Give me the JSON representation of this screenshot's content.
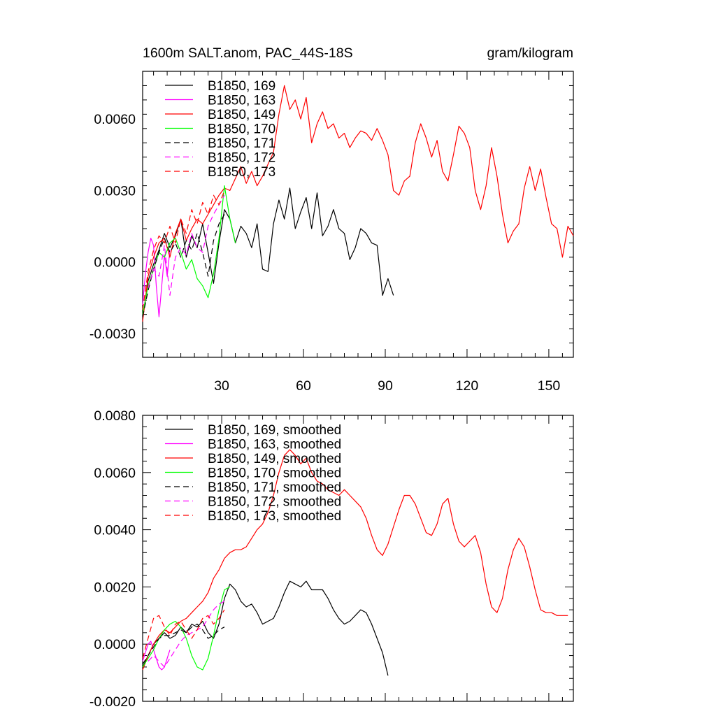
{
  "figure": {
    "title_left": "1600m SALT.anom, PAC_44S-18S",
    "title_right": "gram/kilogram"
  },
  "chart_data": [
    {
      "type": "line",
      "xlim": [
        1,
        159
      ],
      "ylim": [
        -0.004,
        0.008
      ],
      "x_ticks": [
        30,
        60,
        90,
        120,
        150
      ],
      "x_tick_labels": [
        "30",
        "60",
        "90",
        "120",
        "150"
      ],
      "y_ticks": [
        -0.003,
        0.0,
        0.003,
        0.006
      ],
      "y_tick_labels": [
        "-0.0030",
        "0.0000",
        "0.0030",
        "0.0060"
      ],
      "legend_position": "top-left",
      "series": [
        {
          "name": "B1850, 169",
          "color": "#000000",
          "dash": "solid",
          "x": [
            1,
            3,
            5,
            7,
            9,
            11,
            13,
            15,
            17,
            19,
            21,
            23,
            25,
            27,
            29,
            31,
            33,
            35,
            37,
            39,
            41,
            43,
            45,
            47,
            49,
            51,
            53,
            55,
            57,
            59,
            61,
            63,
            65,
            67,
            69,
            71,
            73,
            75,
            77,
            79,
            81,
            83,
            85,
            87,
            89,
            91,
            93
          ],
          "y": [
            -0.0024,
            -0.0008,
            -0.0001,
            0.0005,
            0.0012,
            0.0006,
            0.0011,
            0.0018,
            0.0002,
            0.0011,
            0.0006,
            0.0016,
            0.0004,
            -0.0009,
            0.0008,
            0.0022,
            0.0018,
            0.0008,
            0.0015,
            0.0012,
            0.0006,
            0.0016,
            -0.0003,
            -0.0004,
            0.0016,
            0.0026,
            0.0018,
            0.0031,
            0.0014,
            0.0021,
            0.0027,
            0.0014,
            0.0029,
            0.0011,
            0.0015,
            0.0022,
            0.0014,
            0.0012,
            0.0001,
            0.0006,
            0.0014,
            0.0012,
            0.0008,
            0.0007,
            -0.0014,
            -0.0007,
            -0.0014
          ]
        },
        {
          "name": "B1850, 163",
          "color": "#ff00ff",
          "dash": "solid",
          "x": [
            1,
            2,
            3,
            4,
            5,
            6,
            7,
            8,
            9,
            10,
            11
          ],
          "y": [
            -0.0018,
            -0.0005,
            0.0004,
            0.001,
            0.0007,
            -0.001,
            -0.0023,
            -0.001,
            0.0003,
            -0.0006,
            0.0005
          ]
        },
        {
          "name": "B1850, 149",
          "color": "#ff0000",
          "dash": "solid",
          "x": [
            1,
            3,
            5,
            7,
            9,
            11,
            13,
            15,
            17,
            19,
            21,
            23,
            25,
            27,
            29,
            31,
            33,
            35,
            37,
            39,
            41,
            43,
            45,
            47,
            49,
            51,
            53,
            55,
            57,
            59,
            61,
            63,
            65,
            67,
            69,
            71,
            73,
            75,
            77,
            79,
            81,
            83,
            85,
            87,
            89,
            91,
            93,
            95,
            97,
            99,
            101,
            103,
            105,
            107,
            109,
            111,
            113,
            115,
            117,
            119,
            121,
            123,
            125,
            127,
            129,
            131,
            133,
            135,
            137,
            139,
            141,
            143,
            145,
            147,
            149,
            151,
            153,
            155,
            157,
            159
          ],
          "y": [
            -0.0025,
            -0.0006,
            0.0002,
            0.0008,
            0.001,
            0.0002,
            0.0012,
            0.0018,
            0.0009,
            0.0014,
            0.0018,
            0.0016,
            0.002,
            0.0024,
            0.0028,
            0.0031,
            0.003,
            0.0035,
            0.004,
            0.0033,
            0.0038,
            0.0032,
            0.0036,
            0.0041,
            0.0046,
            0.0062,
            0.0074,
            0.0064,
            0.0068,
            0.006,
            0.0069,
            0.005,
            0.0058,
            0.0063,
            0.0056,
            0.0058,
            0.0052,
            0.0054,
            0.0048,
            0.0052,
            0.0055,
            0.0054,
            0.0051,
            0.0056,
            0.0051,
            0.0045,
            0.003,
            0.0028,
            0.0034,
            0.0036,
            0.005,
            0.0058,
            0.0052,
            0.0044,
            0.0051,
            0.0038,
            0.0034,
            0.0045,
            0.0057,
            0.0054,
            0.0048,
            0.003,
            0.0022,
            0.0032,
            0.0048,
            0.0036,
            0.002,
            0.0008,
            0.0013,
            0.0016,
            0.0031,
            0.004,
            0.003,
            0.0039,
            0.0027,
            0.0016,
            0.0014,
            0.0002,
            0.0015,
            0.0011
          ]
        },
        {
          "name": "B1850, 170",
          "color": "#00ff00",
          "dash": "solid",
          "x": [
            1,
            3,
            5,
            7,
            9,
            11,
            13,
            15,
            17,
            19,
            21,
            23,
            25,
            27,
            29,
            31,
            33,
            35
          ],
          "y": [
            -0.0022,
            -0.001,
            -0.0003,
            0.0004,
            0.0002,
            0.0008,
            0.001,
            0.0004,
            -0.0003,
            0.0001,
            -0.0007,
            -0.001,
            -0.0015,
            -0.0005,
            0.001,
            0.0032,
            0.0018,
            0.0008
          ]
        },
        {
          "name": "B1850, 171",
          "color": "#000000",
          "dash": "dashed",
          "x": [
            1,
            3,
            5,
            7,
            9,
            11,
            13,
            15,
            17,
            19,
            21,
            23,
            25,
            27,
            29,
            31
          ],
          "y": [
            -0.0023,
            -0.0012,
            -0.0003,
            0.0004,
            0.001,
            0.0004,
            0.0008,
            0.0002,
            0.0009,
            0.0005,
            0.0012,
            0.0004,
            -0.0006,
            0.0009,
            0.0016,
            0.002
          ]
        },
        {
          "name": "B1850, 172",
          "color": "#ff00ff",
          "dash": "dashed",
          "x": [
            3,
            5,
            7,
            9,
            11,
            13,
            15,
            17,
            19,
            21,
            23,
            25,
            27,
            29,
            31
          ],
          "y": [
            -0.0011,
            -0.0003,
            -0.0006,
            0.0007,
            -0.0014,
            0.0002,
            0.0006,
            0.0003,
            0.0012,
            0.0006,
            0.0004,
            0.0015,
            0.002,
            0.0024,
            0.0028
          ]
        },
        {
          "name": "B1850, 173",
          "color": "#ff0000",
          "dash": "dashed",
          "x": [
            1,
            3,
            5,
            7,
            9,
            11,
            13,
            15,
            17,
            19,
            21,
            23,
            25,
            27,
            29,
            31
          ],
          "y": [
            -0.002,
            -0.0004,
            0.0005,
            0.0011,
            0.0008,
            0.0015,
            0.0008,
            0.0018,
            0.0012,
            0.0022,
            0.0016,
            0.0025,
            0.002,
            0.0028,
            0.0024,
            0.003
          ]
        }
      ]
    },
    {
      "type": "line",
      "xlim": [
        1,
        159
      ],
      "ylim": [
        -0.002,
        0.008
      ],
      "x_ticks": [
        30,
        60,
        90,
        120,
        150
      ],
      "x_tick_labels": [
        "",
        "",
        "",
        "",
        ""
      ],
      "y_ticks": [
        -0.002,
        0.0,
        0.002,
        0.004,
        0.006,
        0.008
      ],
      "y_tick_labels": [
        "-0.0020",
        "0.0000",
        "0.0020",
        "0.0040",
        "0.0060",
        "0.0080"
      ],
      "legend_position": "top-left",
      "series": [
        {
          "name": "B1850, 169, smoothed",
          "color": "#000000",
          "dash": "solid",
          "x": [
            1,
            3,
            5,
            7,
            9,
            11,
            13,
            15,
            17,
            19,
            21,
            23,
            25,
            27,
            29,
            31,
            33,
            35,
            37,
            39,
            41,
            43,
            45,
            47,
            49,
            51,
            53,
            55,
            57,
            59,
            61,
            63,
            65,
            67,
            69,
            71,
            73,
            75,
            77,
            79,
            81,
            83,
            85,
            87,
            89,
            91
          ],
          "y": [
            -0.0008,
            -0.0004,
            0.0,
            0.0002,
            0.0004,
            0.0002,
            0.0003,
            0.0006,
            0.0004,
            0.0007,
            0.0006,
            0.0008,
            0.0004,
            0.0002,
            0.0007,
            0.0016,
            0.0021,
            0.0019,
            0.0015,
            0.0013,
            0.0014,
            0.0011,
            0.0007,
            0.0008,
            0.0009,
            0.0013,
            0.0018,
            0.0022,
            0.0021,
            0.002,
            0.0022,
            0.0019,
            0.0019,
            0.0019,
            0.0016,
            0.0012,
            0.0009,
            0.0007,
            0.0008,
            0.001,
            0.0012,
            0.0011,
            0.0007,
            0.0002,
            -0.0003,
            -0.0011
          ]
        },
        {
          "name": "B1850, 163, smoothed",
          "color": "#ff00ff",
          "dash": "solid",
          "x": [
            1,
            2,
            3,
            4,
            5,
            6,
            7,
            8,
            9,
            10,
            11
          ],
          "y": [
            -0.0006,
            -0.0003,
            0.0,
            0.0001,
            -0.0002,
            -0.0005,
            -0.0008,
            -0.0009,
            -0.0008,
            -0.0005,
            -0.0002
          ]
        },
        {
          "name": "B1850, 149, smoothed",
          "color": "#ff0000",
          "dash": "solid",
          "x": [
            1,
            3,
            5,
            7,
            9,
            11,
            13,
            15,
            17,
            19,
            21,
            23,
            25,
            27,
            29,
            31,
            33,
            35,
            37,
            39,
            41,
            43,
            45,
            47,
            49,
            51,
            53,
            55,
            57,
            59,
            61,
            63,
            65,
            67,
            69,
            71,
            73,
            75,
            77,
            79,
            81,
            83,
            85,
            87,
            89,
            91,
            93,
            95,
            97,
            99,
            101,
            103,
            105,
            107,
            109,
            111,
            113,
            115,
            117,
            119,
            121,
            123,
            125,
            127,
            129,
            131,
            133,
            135,
            137,
            139,
            141,
            143,
            145,
            147,
            149,
            151,
            153,
            155,
            157
          ],
          "y": [
            -0.0009,
            -0.0004,
            0.0,
            0.0003,
            0.0005,
            0.0004,
            0.0006,
            0.0008,
            0.0009,
            0.0011,
            0.0013,
            0.0015,
            0.0018,
            0.0023,
            0.0026,
            0.003,
            0.0032,
            0.0033,
            0.0033,
            0.0034,
            0.0037,
            0.004,
            0.0042,
            0.0046,
            0.0052,
            0.006,
            0.0066,
            0.0068,
            0.0066,
            0.0063,
            0.0065,
            0.006,
            0.0057,
            0.0056,
            0.0054,
            0.0053,
            0.0052,
            0.0054,
            0.0052,
            0.005,
            0.0048,
            0.0044,
            0.0038,
            0.0033,
            0.0031,
            0.0035,
            0.0041,
            0.0047,
            0.0052,
            0.0052,
            0.0049,
            0.0044,
            0.0039,
            0.0038,
            0.0042,
            0.0049,
            0.0051,
            0.0042,
            0.0036,
            0.0034,
            0.0036,
            0.0038,
            0.0032,
            0.0021,
            0.0013,
            0.0011,
            0.0016,
            0.0026,
            0.0033,
            0.0037,
            0.0034,
            0.0027,
            0.0019,
            0.0012,
            0.0011,
            0.0011,
            0.001,
            0.001,
            0.001
          ]
        },
        {
          "name": "B1850, 170, smoothed",
          "color": "#00ff00",
          "dash": "solid",
          "x": [
            1,
            3,
            5,
            7,
            9,
            11,
            13,
            15,
            17,
            19,
            21,
            23,
            25,
            27,
            29,
            31,
            33
          ],
          "y": [
            -0.0008,
            -0.0005,
            -0.0002,
            0.0002,
            0.0005,
            0.0007,
            0.0008,
            0.0006,
            0.0002,
            -0.0004,
            -0.0008,
            -0.0009,
            -0.0005,
            0.0003,
            0.0012,
            0.0019,
            0.002
          ]
        },
        {
          "name": "B1850, 171, smoothed",
          "color": "#000000",
          "dash": "dashed",
          "x": [
            1,
            3,
            5,
            7,
            9,
            11,
            13,
            15,
            17,
            19,
            21,
            23,
            25,
            27,
            29,
            31
          ],
          "y": [
            -0.0007,
            -0.0004,
            -0.0001,
            0.0002,
            0.0003,
            0.0003,
            0.0004,
            0.0005,
            0.0004,
            0.0006,
            0.0007,
            0.0005,
            0.0002,
            0.0003,
            0.0005,
            0.0006
          ]
        },
        {
          "name": "B1850, 172, smoothed",
          "color": "#ff00ff",
          "dash": "dashed",
          "x": [
            3,
            5,
            7,
            9,
            11,
            13,
            15,
            17,
            19,
            21,
            23,
            25,
            27,
            29,
            31
          ],
          "y": [
            -0.0006,
            -0.0004,
            -0.0006,
            -0.0008,
            -0.0005,
            -0.0002,
            0.0001,
            0.0003,
            0.0004,
            0.0005,
            0.0006,
            0.0009,
            0.0012,
            0.0014,
            0.0015
          ]
        },
        {
          "name": "B1850, 173, smoothed",
          "color": "#ff0000",
          "dash": "dashed",
          "x": [
            1,
            3,
            5,
            7,
            9,
            11,
            13,
            15,
            17,
            19,
            21,
            23,
            25,
            27,
            29,
            31
          ],
          "y": [
            -0.0005,
            0.0002,
            0.0009,
            0.001,
            0.0006,
            0.0003,
            0.0007,
            0.0008,
            0.0005,
            0.0002,
            0.0005,
            0.0009,
            0.001,
            0.0007,
            0.0009,
            0.0012
          ]
        }
      ]
    }
  ]
}
